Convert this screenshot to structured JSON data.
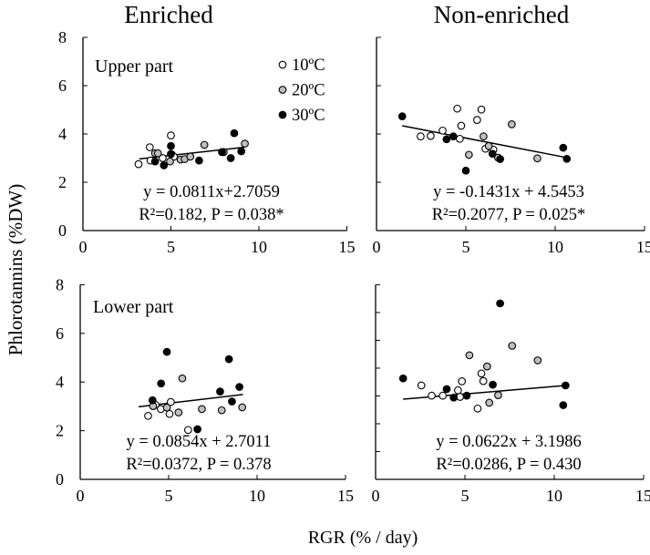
{
  "chart_data": {
    "type": "scatter",
    "ylabel": "Phlorotannins (%DW)",
    "xlabel": "RGR (% / day)",
    "column_titles": [
      "Enriched",
      "Non-enriched"
    ],
    "xlim": [
      0,
      15
    ],
    "ylim": [
      0,
      8
    ],
    "xticks": [
      "0",
      "5",
      "10",
      "15"
    ],
    "yticks": [
      "0",
      "2",
      "4",
      "6",
      "8"
    ],
    "legend": {
      "placement": "top-right of upper-left panel",
      "entries": [
        {
          "label": "10ºC",
          "fill": "#ffffff"
        },
        {
          "label": "20ºC",
          "fill": "#bfbfbf"
        },
        {
          "label": "30ºC",
          "fill": "#000000"
        }
      ]
    },
    "panels": [
      {
        "id": "upper-enriched",
        "row_label": "Upper part",
        "eq": "y = 0.0811x+2.7059",
        "stats": "R²=0.182, P = 0.038*",
        "fit": {
          "slope": 0.0811,
          "intercept": 2.7059,
          "x_range": [
            3.2,
            9.2
          ]
        },
        "series": {
          "10C": [
            [
              3.16,
              2.75
            ],
            [
              3.8,
              3.45
            ],
            [
              3.84,
              2.9
            ],
            [
              4.53,
              3.0
            ],
            [
              5.0,
              3.94
            ],
            [
              5.05,
              3.15
            ],
            [
              5.17,
              3.06
            ]
          ],
          "20C": [
            [
              4.1,
              3.2
            ],
            [
              4.26,
              3.2
            ],
            [
              4.95,
              2.86
            ],
            [
              5.55,
              2.94
            ],
            [
              5.78,
              2.96
            ],
            [
              6.1,
              3.06
            ],
            [
              6.9,
              3.55
            ],
            [
              8.0,
              3.25
            ],
            [
              9.2,
              3.6
            ]
          ],
          "30C": [
            [
              4.1,
              2.86
            ],
            [
              4.6,
              2.7
            ],
            [
              5.0,
              3.5
            ],
            [
              5.0,
              3.17
            ],
            [
              6.6,
              2.9
            ],
            [
              7.9,
              3.25
            ],
            [
              8.4,
              3.0
            ],
            [
              8.6,
              4.03
            ],
            [
              9.0,
              3.28
            ]
          ]
        }
      },
      {
        "id": "upper-nonenriched",
        "row_label": "",
        "eq": "y = -0.1431x + 4.5453",
        "stats": "R²=0.2077, P = 0.025*",
        "fit": {
          "slope": -0.1431,
          "intercept": 4.5453,
          "x_range": [
            1.44,
            10.65
          ]
        },
        "series": {
          "10C": [
            [
              2.47,
              3.9
            ],
            [
              3.03,
              3.92
            ],
            [
              3.7,
              4.14
            ],
            [
              4.52,
              5.05
            ],
            [
              4.74,
              4.34
            ],
            [
              4.66,
              3.8
            ],
            [
              5.63,
              4.58
            ],
            [
              5.87,
              5.01
            ],
            [
              6.1,
              3.39
            ],
            [
              6.54,
              3.35
            ]
          ],
          "20C": [
            [
              5.17,
              3.14
            ],
            [
              5.99,
              3.9
            ],
            [
              6.28,
              3.5
            ],
            [
              6.8,
              3.02
            ],
            [
              7.57,
              4.4
            ],
            [
              9.0,
              2.99
            ]
          ],
          "30C": [
            [
              1.44,
              4.73
            ],
            [
              3.92,
              3.78
            ],
            [
              4.3,
              3.9
            ],
            [
              5.0,
              2.48
            ],
            [
              6.49,
              3.18
            ],
            [
              6.92,
              2.96
            ],
            [
              10.45,
              3.43
            ],
            [
              10.65,
              2.97
            ]
          ]
        }
      },
      {
        "id": "lower-enriched",
        "row_label": "Lower part",
        "eq": "y = 0.0854x + 2.7011",
        "stats": "R²=0.0372, P = 0.378",
        "fit": {
          "slope": 0.0854,
          "intercept": 2.7011,
          "x_range": [
            3.3,
            9.2
          ]
        },
        "series": {
          "10C": [
            [
              3.84,
              2.61
            ],
            [
              4.26,
              3.06
            ],
            [
              4.56,
              2.89
            ],
            [
              5.05,
              2.69
            ],
            [
              5.12,
              3.18
            ],
            [
              6.1,
              2.03
            ]
          ],
          "20C": [
            [
              4.12,
              3.01
            ],
            [
              4.9,
              2.95
            ],
            [
              5.56,
              2.75
            ],
            [
              5.77,
              4.15
            ],
            [
              6.88,
              2.89
            ],
            [
              8.0,
              2.84
            ],
            [
              9.16,
              2.96
            ]
          ],
          "30C": [
            [
              4.9,
              5.24
            ],
            [
              4.57,
              3.94
            ],
            [
              4.09,
              3.25
            ],
            [
              6.63,
              2.06
            ],
            [
              7.91,
              3.61
            ],
            [
              8.41,
              4.94
            ],
            [
              8.58,
              3.2
            ],
            [
              9.0,
              3.8
            ]
          ]
        }
      },
      {
        "id": "lower-nonenriched",
        "row_label": "",
        "eq": "y = 0.0622x + 3.1986",
        "stats": "R²=0.0286,  P = 0.430",
        "fit": {
          "slope": 0.0622,
          "intercept": 3.1986,
          "x_range": [
            1.54,
            10.7
          ]
        },
        "series": {
          "10C": [
            [
              2.56,
              3.86
            ],
            [
              3.14,
              3.44
            ],
            [
              3.76,
              3.44
            ],
            [
              4.61,
              3.66
            ],
            [
              4.73,
              3.39
            ],
            [
              4.83,
              4.03
            ],
            [
              5.71,
              2.91
            ],
            [
              5.92,
              4.35
            ],
            [
              6.03,
              4.04
            ]
          ],
          "20C": [
            [
              5.25,
              5.1
            ],
            [
              6.24,
              4.64
            ],
            [
              6.36,
              3.15
            ],
            [
              6.86,
              3.46
            ],
            [
              7.64,
              5.49
            ],
            [
              9.07,
              4.89
            ]
          ],
          "30C": [
            [
              1.54,
              4.15
            ],
            [
              3.98,
              3.71
            ],
            [
              4.37,
              3.36
            ],
            [
              5.1,
              3.44
            ],
            [
              6.56,
              3.89
            ],
            [
              6.97,
              7.23
            ],
            [
              10.5,
              3.05
            ],
            [
              10.63,
              3.86
            ]
          ]
        }
      }
    ]
  }
}
